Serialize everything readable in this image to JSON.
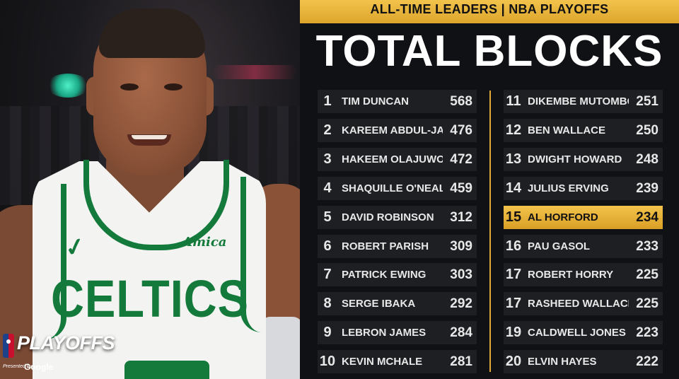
{
  "header": "ALL-TIME LEADERS | NBA PLAYOFFS",
  "title": "TOTAL BLOCKS",
  "photo": {
    "jersey_brand": "Amica",
    "jersey_team": "CELTICS"
  },
  "branding": {
    "playoffs": "PLAYOFFS",
    "presented_by": "Presented by",
    "sponsor": "Google",
    "logo_text": "NBA"
  },
  "colors": {
    "gold": "#f2c34b",
    "row_bg": "#1d1f23",
    "celtics_green": "#137a3c"
  },
  "leaders_left": [
    {
      "rank": "1",
      "name": "TIM DUNCAN",
      "value": "568"
    },
    {
      "rank": "2",
      "name": "KAREEM ABDUL-JABBAR",
      "value": "476"
    },
    {
      "rank": "3",
      "name": "HAKEEM OLAJUWON",
      "value": "472"
    },
    {
      "rank": "4",
      "name": "SHAQUILLE O'NEAL",
      "value": "459"
    },
    {
      "rank": "5",
      "name": "DAVID ROBINSON",
      "value": "312"
    },
    {
      "rank": "6",
      "name": "ROBERT PARISH",
      "value": "309"
    },
    {
      "rank": "7",
      "name": "PATRICK EWING",
      "value": "303"
    },
    {
      "rank": "8",
      "name": "SERGE IBAKA",
      "value": "292"
    },
    {
      "rank": "9",
      "name": "LEBRON JAMES",
      "value": "284"
    },
    {
      "rank": "10",
      "name": "KEVIN MCHALE",
      "value": "281"
    }
  ],
  "leaders_right": [
    {
      "rank": "11",
      "name": "DIKEMBE MUTOMBO",
      "value": "251"
    },
    {
      "rank": "12",
      "name": "BEN WALLACE",
      "value": "250"
    },
    {
      "rank": "13",
      "name": "DWIGHT HOWARD",
      "value": "248"
    },
    {
      "rank": "14",
      "name": "JULIUS ERVING",
      "value": "239"
    },
    {
      "rank": "15",
      "name": "AL HORFORD",
      "value": "234",
      "highlight": true
    },
    {
      "rank": "16",
      "name": "PAU GASOL",
      "value": "233"
    },
    {
      "rank": "17",
      "name": "ROBERT HORRY",
      "value": "225"
    },
    {
      "rank": "17",
      "name": "RASHEED WALLACE",
      "value": "225"
    },
    {
      "rank": "19",
      "name": "CALDWELL JONES",
      "value": "223"
    },
    {
      "rank": "20",
      "name": "ELVIN HAYES",
      "value": "222"
    }
  ]
}
